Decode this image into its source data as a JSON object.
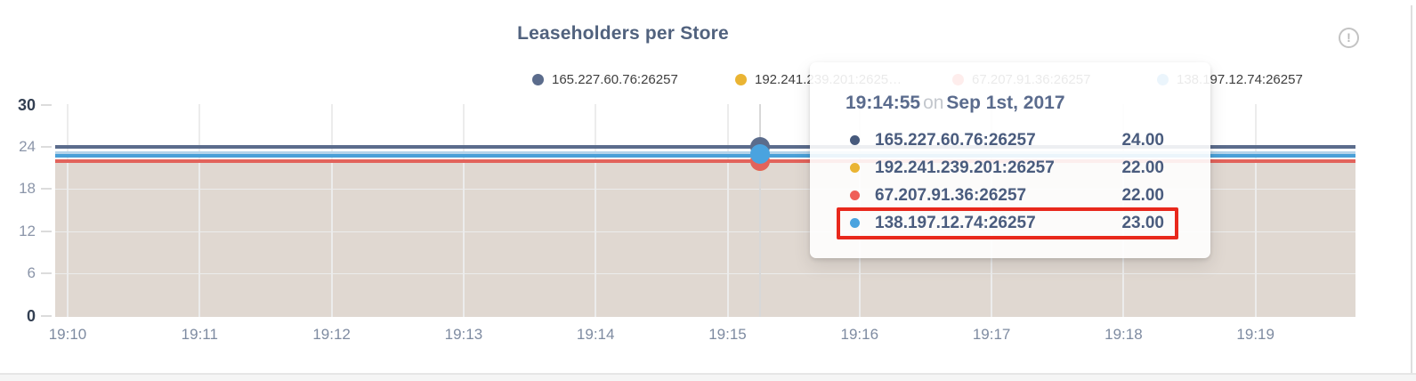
{
  "panel": {
    "title": "Leaseholders per Store"
  },
  "legend": {
    "items": [
      {
        "label": "165.227.60.76:26257",
        "color": "#5b6c8c"
      },
      {
        "label": "192.241.239.201:2625…",
        "color": "#eab433"
      },
      {
        "label": "67.207.91.36:26257",
        "color": "#ef5f58"
      },
      {
        "label": "138.197.12.74:26257",
        "color": "#4aa3df"
      }
    ]
  },
  "axes": {
    "y_ticks": [
      "30",
      "24",
      "18",
      "12",
      "6",
      "0"
    ],
    "x_ticks": [
      "19:10",
      "19:11",
      "19:12",
      "19:13",
      "19:14",
      "19:15",
      "19:16",
      "19:17",
      "19:18",
      "19:19"
    ]
  },
  "tooltip": {
    "time": "19:14:55",
    "on_word": "on",
    "date": "Sep 1st, 2017",
    "rows": [
      {
        "label": "165.227.60.76:26257",
        "value": "24.00",
        "color": "#46597c",
        "highlighted": false
      },
      {
        "label": "192.241.239.201:26257",
        "value": "22.00",
        "color": "#eab433",
        "highlighted": false
      },
      {
        "label": "67.207.91.36:26257",
        "value": "22.00",
        "color": "#ef5f58",
        "highlighted": false
      },
      {
        "label": "138.197.12.74:26257",
        "value": "23.00",
        "color": "#4aa3df",
        "highlighted": true
      }
    ]
  },
  "chart_data": {
    "type": "line",
    "title": "Leaseholders per Store",
    "x": [
      "19:10",
      "19:11",
      "19:12",
      "19:13",
      "19:14",
      "19:15",
      "19:16",
      "19:17",
      "19:18",
      "19:19"
    ],
    "xlabel": "",
    "ylabel": "",
    "ylim": [
      0,
      30
    ],
    "y_ticks": [
      0,
      6,
      12,
      18,
      24,
      30
    ],
    "grid": true,
    "legend_position": "top",
    "area_fill_color": "#e0d8d1",
    "series": [
      {
        "name": "165.227.60.76:26257",
        "color": "#5b6c8c",
        "values": [
          24,
          24,
          24,
          24,
          24,
          24,
          24,
          24,
          24,
          24
        ]
      },
      {
        "name": "192.241.239.201:26257",
        "color": "#eab433",
        "values": [
          22,
          22,
          22,
          22,
          22,
          22,
          22,
          22,
          22,
          22
        ]
      },
      {
        "name": "67.207.91.36:26257",
        "color": "#e2635b",
        "values": [
          22,
          22,
          22,
          22,
          22,
          22,
          22,
          22,
          22,
          22
        ]
      },
      {
        "name": "138.197.12.74:26257",
        "color": "#4aa3df",
        "values": [
          23,
          23,
          23,
          23,
          23,
          23,
          23,
          23,
          23,
          23
        ]
      }
    ],
    "hover_point": {
      "time": "19:14:55",
      "date": "Sep 1st, 2017",
      "values": {
        "165.227.60.76:26257": 24.0,
        "192.241.239.201:26257": 22.0,
        "67.207.91.36:26257": 22.0,
        "138.197.12.74:26257": 23.0
      },
      "highlighted_series": "138.197.12.74:26257"
    }
  }
}
